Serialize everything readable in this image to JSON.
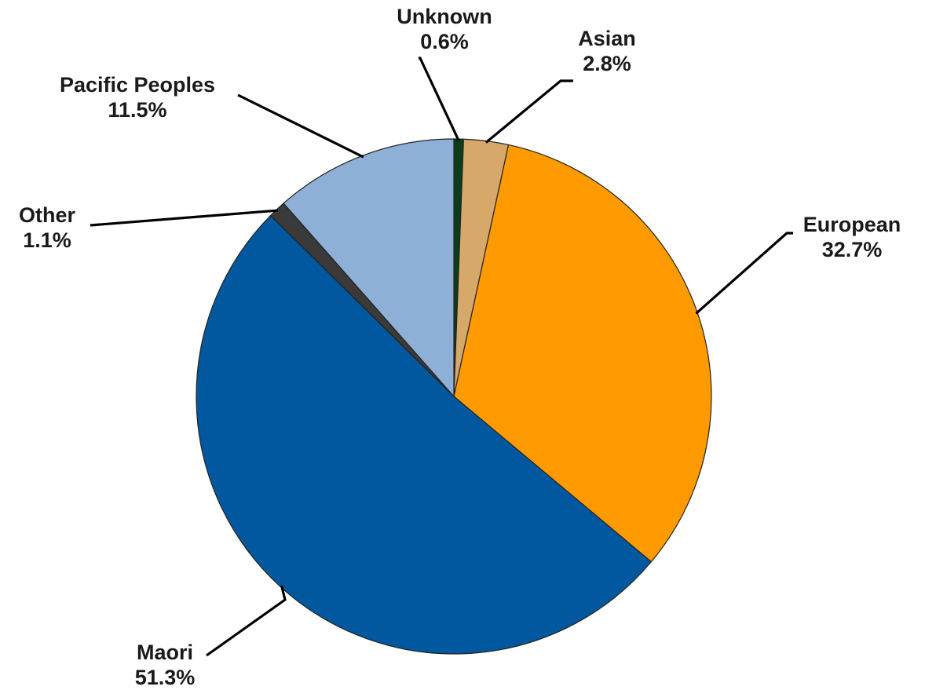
{
  "chart_data": {
    "type": "pie",
    "title": "",
    "series": [
      {
        "name": "Unknown",
        "value": 0.6,
        "label": "0.6%",
        "color": "#0b3d1a"
      },
      {
        "name": "Asian",
        "value": 2.8,
        "label": "2.8%",
        "color": "#d6a86a"
      },
      {
        "name": "European",
        "value": 32.7,
        "label": "32.7%",
        "color": "#ff9a00"
      },
      {
        "name": "Maori",
        "value": 51.3,
        "label": "51.3%",
        "color": "#02589e"
      },
      {
        "name": "Other",
        "value": 1.1,
        "label": "1.1%",
        "color": "#3a3a3a"
      },
      {
        "name": "Pacific Peoples",
        "value": 11.5,
        "label": "11.5%",
        "color": "#8eb0d6"
      }
    ],
    "start_angle_deg": 0,
    "direction": "clockwise",
    "legend": "none",
    "data_labels": "outside with leader lines"
  }
}
